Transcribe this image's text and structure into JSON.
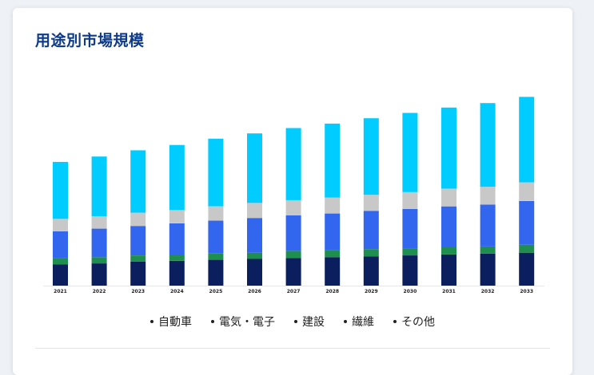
{
  "title": "用途別市場規模",
  "colors": {
    "series": [
      "#0b1f5e",
      "#1e8f4e",
      "#3366ee",
      "#c8c8c8",
      "#00ccff"
    ]
  },
  "chart_data": {
    "type": "bar",
    "stacked": true,
    "title": "",
    "xlabel": "",
    "ylabel": "",
    "categories": [
      "2021",
      "2022",
      "2023",
      "2024",
      "2025",
      "2026",
      "2027",
      "2028",
      "2029",
      "2030",
      "2031",
      "2032",
      "2033"
    ],
    "ylim": [
      0,
      224
    ],
    "grid": false,
    "legend_position": "bottom",
    "series": [
      {
        "name": "自動車",
        "values": [
          24,
          25,
          27,
          28,
          29,
          30,
          31,
          32,
          33,
          34,
          35,
          36,
          37
        ]
      },
      {
        "name": "電気・電子",
        "values": [
          7,
          7,
          7,
          7,
          7,
          7,
          8,
          8,
          8,
          8,
          8,
          8,
          9
        ]
      },
      {
        "name": "建設",
        "values": [
          30,
          32,
          33,
          35,
          37,
          39,
          40,
          41,
          43,
          44,
          46,
          47,
          49
        ]
      },
      {
        "name": "繊維",
        "values": [
          14,
          14,
          15,
          15,
          16,
          17,
          17,
          18,
          18,
          19,
          20,
          20,
          21
        ]
      },
      {
        "name": "その他",
        "values": [
          64,
          67,
          70,
          73,
          76,
          78,
          81,
          83,
          86,
          89,
          91,
          94,
          96
        ]
      }
    ]
  }
}
